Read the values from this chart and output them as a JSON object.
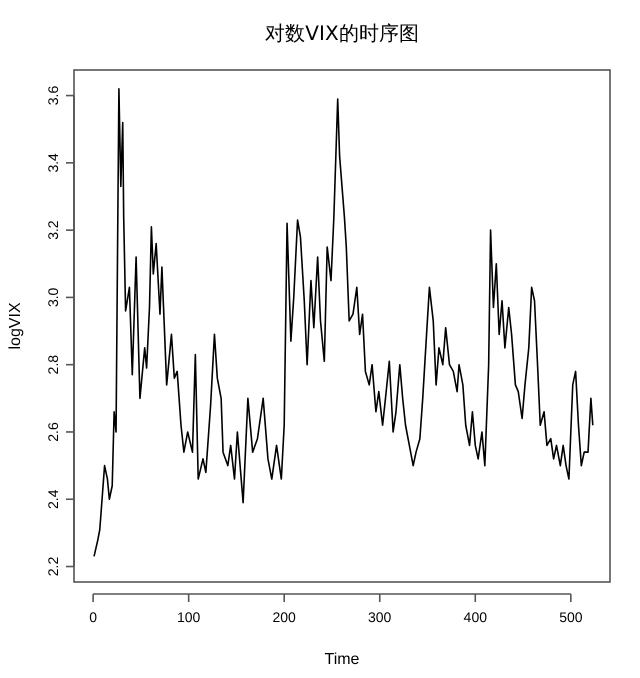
{
  "chart_data": {
    "type": "line",
    "title": "对数VIX的时序图",
    "xlabel": "Time",
    "ylabel": "logVIX",
    "xlim": [
      -20,
      541
    ],
    "ylim": [
      2.154,
      3.676
    ],
    "xticks": [
      0,
      100,
      200,
      300,
      400,
      500
    ],
    "yticks": [
      2.2,
      2.4,
      2.6,
      2.8,
      {
        "value": 3,
        "label": "3.0"
      },
      3.2,
      3.4,
      3.6
    ],
    "grid": false,
    "series": [
      {
        "color": "#000000",
        "x": [
          1,
          5,
          7,
          12,
          15,
          17,
          20,
          22,
          24,
          27,
          29,
          31,
          32,
          34,
          38,
          41,
          45,
          49,
          54,
          56,
          59,
          61,
          63,
          66,
          70,
          72,
          77,
          82,
          85,
          88,
          92,
          95,
          99,
          104,
          107,
          110,
          115,
          118,
          123,
          127,
          130,
          134,
          136,
          141,
          144,
          148,
          151,
          157,
          162,
          167,
          172,
          178,
          183,
          187,
          192,
          197,
          200,
          203,
          207,
          210,
          214,
          217,
          221,
          224,
          228,
          231,
          235,
          238,
          242,
          245,
          249,
          252,
          256,
          258,
          263,
          265,
          268,
          272,
          276,
          279,
          282,
          285,
          289,
          292,
          296,
          299,
          303,
          306,
          310,
          314,
          317,
          321,
          324,
          327,
          331,
          335,
          338,
          342,
          345,
          349,
          352,
          356,
          359,
          362,
          366,
          369,
          373,
          377,
          381,
          383,
          387,
          390,
          394,
          397,
          400,
          403,
          407,
          410,
          414,
          416,
          419,
          422,
          425,
          428,
          431,
          435,
          438,
          442,
          445,
          449,
          452,
          456,
          459,
          462,
          465,
          468,
          472,
          475,
          479,
          482,
          485,
          489,
          492,
          495,
          498,
          502,
          505,
          508,
          511,
          514,
          518,
          521,
          523
        ],
        "values": [
          2.23,
          2.28,
          2.31,
          2.5,
          2.46,
          2.4,
          2.44,
          2.66,
          2.6,
          3.62,
          3.33,
          3.52,
          3.24,
          2.96,
          3.03,
          2.77,
          3.12,
          2.7,
          2.85,
          2.79,
          2.97,
          3.21,
          3.07,
          3.16,
          2.95,
          3.09,
          2.74,
          2.89,
          2.76,
          2.78,
          2.62,
          2.54,
          2.6,
          2.54,
          2.83,
          2.46,
          2.52,
          2.48,
          2.68,
          2.89,
          2.76,
          2.7,
          2.54,
          2.5,
          2.56,
          2.46,
          2.6,
          2.39,
          2.7,
          2.54,
          2.58,
          2.7,
          2.52,
          2.46,
          2.56,
          2.46,
          2.62,
          3.22,
          2.87,
          3.0,
          3.23,
          3.18,
          2.99,
          2.8,
          3.05,
          2.91,
          3.12,
          2.93,
          2.81,
          3.15,
          3.05,
          3.24,
          3.59,
          3.42,
          3.24,
          3.15,
          2.93,
          2.95,
          3.03,
          2.89,
          2.95,
          2.78,
          2.74,
          2.8,
          2.66,
          2.72,
          2.62,
          2.7,
          2.81,
          2.6,
          2.66,
          2.8,
          2.7,
          2.62,
          2.56,
          2.5,
          2.54,
          2.58,
          2.7,
          2.89,
          3.03,
          2.93,
          2.74,
          2.85,
          2.8,
          2.91,
          2.8,
          2.78,
          2.72,
          2.8,
          2.74,
          2.62,
          2.56,
          2.66,
          2.56,
          2.52,
          2.6,
          2.5,
          2.8,
          3.2,
          2.97,
          3.1,
          2.89,
          2.99,
          2.85,
          2.97,
          2.89,
          2.74,
          2.72,
          2.64,
          2.74,
          2.85,
          3.03,
          2.99,
          2.81,
          2.62,
          2.66,
          2.56,
          2.58,
          2.52,
          2.56,
          2.5,
          2.56,
          2.5,
          2.46,
          2.74,
          2.78,
          2.62,
          2.5,
          2.54,
          2.54,
          2.7,
          2.62
        ]
      }
    ]
  }
}
